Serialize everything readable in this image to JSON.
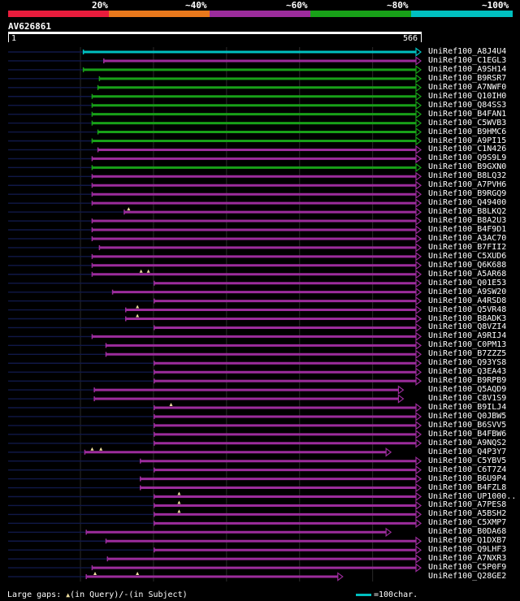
{
  "colors": {
    "background": "#000000",
    "query_line": "#101848",
    "grid": "#2a2a2a",
    "legend": [
      "#e81c3c",
      "#e8781c",
      "#9c2c9c",
      "#18a018",
      "#00c0c0"
    ],
    "marker": "#f0e0a0"
  },
  "legend": {
    "labels": [
      "20%",
      "~40%",
      "~60%",
      "~80%",
      "~100%"
    ]
  },
  "query": {
    "id": "AV626861",
    "start": "1",
    "end": "566",
    "length": 566
  },
  "hits": [
    {
      "name": "UniRef100_A8J4U4",
      "start": 104,
      "end": 566,
      "cat": 4,
      "arrow": true
    },
    {
      "name": "UniRef100_C1EGL3",
      "start": 132,
      "end": 566,
      "cat": 2,
      "arrow": true
    },
    {
      "name": "UniRef100_A9SH14",
      "start": 104,
      "end": 566,
      "cat": 3,
      "arrow": true
    },
    {
      "name": "UniRef100_B9RSR7",
      "start": 126,
      "end": 566,
      "cat": 3,
      "arrow": true
    },
    {
      "name": "UniRef100_A7NWF0",
      "start": 124,
      "end": 566,
      "cat": 3,
      "arrow": true
    },
    {
      "name": "UniRef100_Q10IH0",
      "start": 116,
      "end": 566,
      "cat": 3,
      "arrow": true
    },
    {
      "name": "UniRef100_Q84SS3",
      "start": 116,
      "end": 566,
      "cat": 3,
      "arrow": true
    },
    {
      "name": "UniRef100_B4FAN1",
      "start": 116,
      "end": 566,
      "cat": 3,
      "arrow": true
    },
    {
      "name": "UniRef100_C5WVB3",
      "start": 116,
      "end": 566,
      "cat": 3,
      "arrow": true
    },
    {
      "name": "UniRef100_B9HMC6",
      "start": 124,
      "end": 566,
      "cat": 3,
      "arrow": true
    },
    {
      "name": "UniRef100_A9PI15",
      "start": 116,
      "end": 566,
      "cat": 3,
      "arrow": true
    },
    {
      "name": "UniRef100_C1N426",
      "start": 124,
      "end": 566,
      "cat": 2,
      "arrow": true
    },
    {
      "name": "UniRef100_Q9S9L9",
      "start": 116,
      "end": 566,
      "cat": 2,
      "arrow": true
    },
    {
      "name": "UniRef100_B9GXN0",
      "start": 116,
      "end": 566,
      "cat": 3,
      "arrow": true
    },
    {
      "name": "UniRef100_B8LQ32",
      "start": 116,
      "end": 566,
      "cat": 2,
      "arrow": true
    },
    {
      "name": "UniRef100_A7PVH6",
      "start": 116,
      "end": 566,
      "cat": 2,
      "arrow": true
    },
    {
      "name": "UniRef100_B9RGQ9",
      "start": 116,
      "end": 566,
      "cat": 2,
      "arrow": true
    },
    {
      "name": "UniRef100_Q49400",
      "start": 116,
      "end": 566,
      "cat": 2,
      "arrow": true
    },
    {
      "name": "UniRef100_B8LKQ2",
      "start": 160,
      "end": 566,
      "cat": 2,
      "arrow": true,
      "markers": [
        166
      ]
    },
    {
      "name": "UniRef100_B8A2U3",
      "start": 116,
      "end": 566,
      "cat": 2,
      "arrow": true
    },
    {
      "name": "UniRef100_B4F9D1",
      "start": 116,
      "end": 566,
      "cat": 2,
      "arrow": true
    },
    {
      "name": "UniRef100_A3AC70",
      "start": 116,
      "end": 566,
      "cat": 2,
      "arrow": true
    },
    {
      "name": "UniRef100_B7FII2",
      "start": 126,
      "end": 566,
      "cat": 2,
      "arrow": true
    },
    {
      "name": "UniRef100_C5XUD6",
      "start": 116,
      "end": 566,
      "cat": 2,
      "arrow": true
    },
    {
      "name": "UniRef100_Q6K688",
      "start": 116,
      "end": 566,
      "cat": 2,
      "arrow": true
    },
    {
      "name": "UniRef100_A5AR68",
      "start": 116,
      "end": 566,
      "cat": 2,
      "arrow": true,
      "markers": [
        183,
        193
      ]
    },
    {
      "name": "UniRef100_Q01E53",
      "start": 201,
      "end": 566,
      "cat": 2,
      "arrow": true
    },
    {
      "name": "UniRef100_A9SW20",
      "start": 144,
      "end": 566,
      "cat": 2,
      "arrow": true
    },
    {
      "name": "UniRef100_A4RSD8",
      "start": 201,
      "end": 566,
      "cat": 2,
      "arrow": true
    },
    {
      "name": "UniRef100_Q5VR48",
      "start": 162,
      "end": 566,
      "cat": 2,
      "arrow": true,
      "markers": [
        178
      ]
    },
    {
      "name": "UniRef100_B8ADK3",
      "start": 162,
      "end": 566,
      "cat": 2,
      "arrow": true,
      "markers": [
        178
      ]
    },
    {
      "name": "UniRef100_Q8VZI4",
      "start": 201,
      "end": 566,
      "cat": 2,
      "arrow": true
    },
    {
      "name": "UniRef100_A9RIJ4",
      "start": 116,
      "end": 566,
      "cat": 2,
      "arrow": true
    },
    {
      "name": "UniRef100_C0PM13",
      "start": 135,
      "end": 566,
      "cat": 2,
      "arrow": true
    },
    {
      "name": "UniRef100_B7ZZZ5",
      "start": 135,
      "end": 566,
      "cat": 2,
      "arrow": true
    },
    {
      "name": "UniRef100_Q93YS8",
      "start": 201,
      "end": 566,
      "cat": 2,
      "arrow": true
    },
    {
      "name": "UniRef100_Q3EA43",
      "start": 201,
      "end": 566,
      "cat": 2,
      "arrow": true
    },
    {
      "name": "UniRef100_B9RPB9",
      "start": 201,
      "end": 566,
      "cat": 2,
      "arrow": true
    },
    {
      "name": "UniRef100_Q5AQD9",
      "start": 119,
      "end": 542,
      "cat": 2,
      "arrow": true
    },
    {
      "name": "UniRef100_C8V1S9",
      "start": 119,
      "end": 542,
      "cat": 2,
      "arrow": true
    },
    {
      "name": "UniRef100_B9ILJ4",
      "start": 201,
      "end": 566,
      "cat": 2,
      "arrow": true,
      "markers": [
        224
      ]
    },
    {
      "name": "UniRef100_Q0JBW5",
      "start": 201,
      "end": 566,
      "cat": 2,
      "arrow": true
    },
    {
      "name": "UniRef100_B6SVV5",
      "start": 201,
      "end": 566,
      "cat": 2,
      "arrow": true
    },
    {
      "name": "UniRef100_B4FBW6",
      "start": 201,
      "end": 566,
      "cat": 2,
      "arrow": true
    },
    {
      "name": "UniRef100_A9NQS2",
      "start": 201,
      "end": 566,
      "cat": 2,
      "arrow": true
    },
    {
      "name": "UniRef100_Q4P3Y7",
      "start": 106,
      "end": 525,
      "cat": 2,
      "arrow": true,
      "markers": [
        116,
        128
      ]
    },
    {
      "name": "UniRef100_C5YBV5",
      "start": 182,
      "end": 566,
      "cat": 2,
      "arrow": true
    },
    {
      "name": "UniRef100_C6T7Z4",
      "start": 201,
      "end": 566,
      "cat": 2,
      "arrow": true
    },
    {
      "name": "UniRef100_B6U9P4",
      "start": 182,
      "end": 566,
      "cat": 2,
      "arrow": true
    },
    {
      "name": "UniRef100_B4FZL8",
      "start": 182,
      "end": 566,
      "cat": 2,
      "arrow": true
    },
    {
      "name": "UniRef100_UP1000..",
      "start": 201,
      "end": 566,
      "cat": 2,
      "arrow": true,
      "markers": [
        235
      ]
    },
    {
      "name": "UniRef100_A7PES8",
      "start": 201,
      "end": 566,
      "cat": 2,
      "arrow": true,
      "markers": [
        235
      ]
    },
    {
      "name": "UniRef100_A5BSH2",
      "start": 201,
      "end": 566,
      "cat": 2,
      "arrow": true,
      "markers": [
        235
      ]
    },
    {
      "name": "UniRef100_C5XMP7",
      "start": 201,
      "end": 566,
      "cat": 2,
      "arrow": true
    },
    {
      "name": "UniRef100_B0DA68",
      "start": 108,
      "end": 525,
      "cat": 2,
      "arrow": true
    },
    {
      "name": "UniRef100_Q1DXB7",
      "start": 135,
      "end": 566,
      "cat": 2,
      "arrow": true
    },
    {
      "name": "UniRef100_Q9LHF3",
      "start": 201,
      "end": 566,
      "cat": 2,
      "arrow": true
    },
    {
      "name": "UniRef100_A7NXR3",
      "start": 137,
      "end": 566,
      "cat": 2,
      "arrow": true
    },
    {
      "name": "UniRef100_C5P0F9",
      "start": 116,
      "end": 566,
      "cat": 2,
      "arrow": true
    },
    {
      "name": "UniRef100_Q28GE2",
      "start": 108,
      "end": 459,
      "cat": 2,
      "arrow": true,
      "markers": [
        120,
        178
      ]
    }
  ],
  "footer": {
    "large_gaps_label": "Large gaps:",
    "query_gap_text": "(in Query)/",
    "subject_gap_symbol": "-",
    "subject_gap_text": "(in Subject)",
    "marker_symbol": "▲",
    "scale_label": "=100char."
  }
}
